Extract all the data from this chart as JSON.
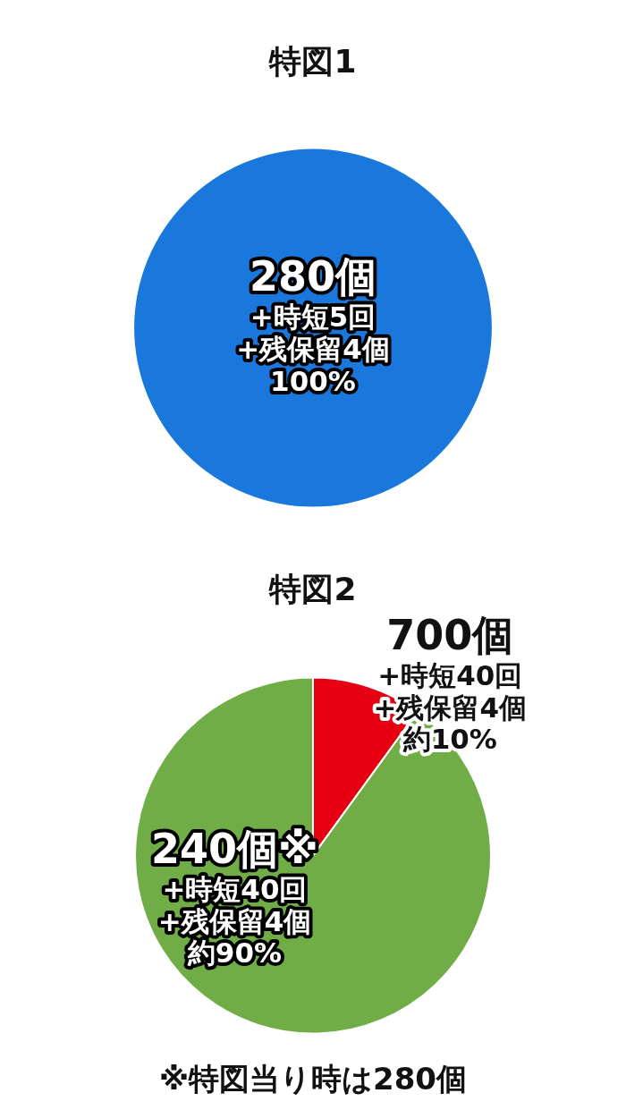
{
  "chart_data": [
    {
      "type": "pie",
      "title": "特図1",
      "categories": [
        "280個\n+時短5回\n+残保留4個"
      ],
      "values": [
        100
      ],
      "colors": [
        "#1a78dc"
      ],
      "value_labels": [
        "100%"
      ]
    },
    {
      "type": "pie",
      "title": "特図2",
      "categories": [
        "700個\n+時短40回\n+残保留4個",
        "240個※\n+時短40回\n+残保留4個"
      ],
      "values": [
        10,
        90
      ],
      "colors": [
        "#e60012",
        " #70ad47"
      ],
      "value_labels": [
        "約10%",
        "約90%"
      ],
      "annotations": [
        "※特図当り時は280個"
      ]
    }
  ]
}
